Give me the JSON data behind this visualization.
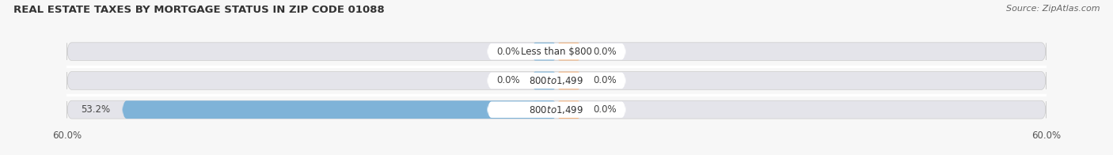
{
  "title": "REAL ESTATE TAXES BY MORTGAGE STATUS IN ZIP CODE 01088",
  "source": "Source: ZipAtlas.com",
  "rows": [
    {
      "label": "Less than $800",
      "without_mortgage": 0.0,
      "with_mortgage": 0.0
    },
    {
      "label": "$800 to $1,499",
      "without_mortgage": 0.0,
      "with_mortgage": 0.0
    },
    {
      "label": "$800 to $1,499",
      "without_mortgage": 53.2,
      "with_mortgage": 0.0
    }
  ],
  "xlim_left": -60.0,
  "xlim_right": 60.0,
  "color_without": "#7fb3d8",
  "color_with": "#f2b482",
  "color_bar_bg": "#e4e4ea",
  "color_label_box": "#ffffff",
  "background": "#f7f7f7",
  "row_sep_color": "#ffffff",
  "bar_height": 0.62,
  "label_fontsize": 8.5,
  "value_fontsize": 8.5,
  "title_fontsize": 9.5,
  "source_fontsize": 8.0,
  "title_color": "#333333",
  "value_color": "#444444",
  "label_text_color": "#333333"
}
